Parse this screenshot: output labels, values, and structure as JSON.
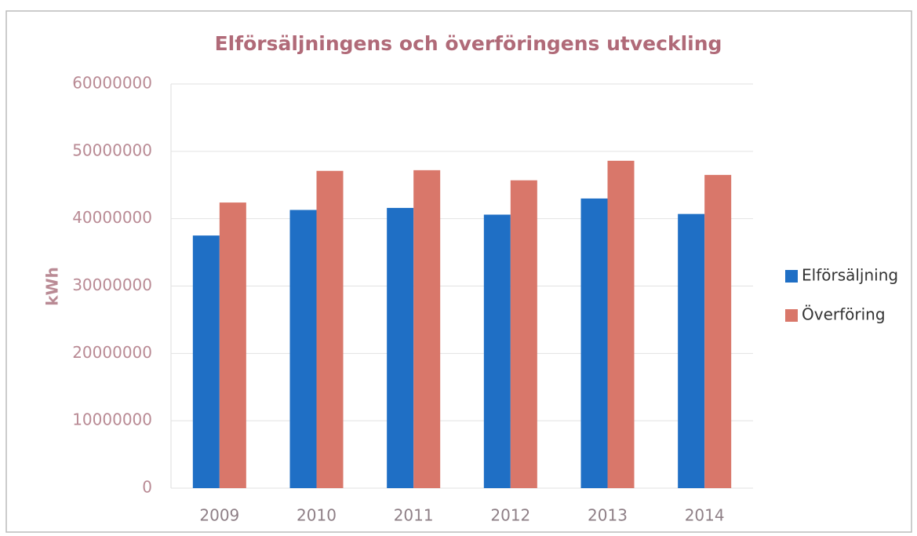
{
  "chart_data": {
    "type": "bar",
    "title": "Elförsäljningens och överföringens utveckling",
    "y_label": "kWh",
    "categories": [
      "2009",
      "2010",
      "2011",
      "2012",
      "2013",
      "2014"
    ],
    "series": [
      {
        "name": "Elförsäljning",
        "color": "#1f6fc5",
        "values": [
          37500000,
          41300000,
          41600000,
          40600000,
          43000000,
          40700000
        ]
      },
      {
        "name": "Överföring",
        "color": "#d9776a",
        "values": [
          42400000,
          47100000,
          47200000,
          45700000,
          48600000,
          46500000
        ]
      }
    ],
    "ylim": [
      0,
      60000000
    ],
    "yticks": [
      0,
      10000000,
      20000000,
      30000000,
      40000000,
      50000000,
      60000000
    ],
    "grid": true,
    "legend": "right"
  }
}
